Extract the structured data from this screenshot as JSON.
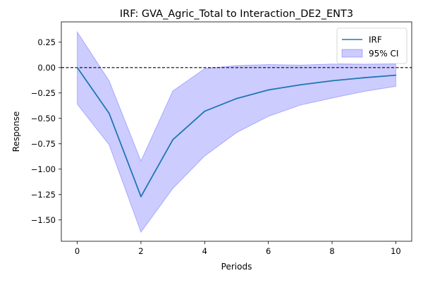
{
  "chart_data": {
    "type": "line",
    "title": "IRF: GVA_Agric_Total to Interaction_DE2_ENT3",
    "xlabel": "Periods",
    "ylabel": "Response",
    "xlim": [
      -0.5,
      10.5
    ],
    "ylim": [
      -1.71,
      0.45
    ],
    "x": [
      0,
      1,
      2,
      3,
      4,
      5,
      6,
      7,
      8,
      9,
      10
    ],
    "x_ticks": [
      0,
      2,
      4,
      6,
      8,
      10
    ],
    "y_ticks": [
      -1.5,
      -1.25,
      -1.0,
      -0.75,
      -0.5,
      -0.25,
      0.0,
      0.25
    ],
    "y_tick_labels": [
      "−1.50",
      "−1.25",
      "−1.00",
      "−0.75",
      "−0.50",
      "−0.25",
      "0.00",
      "0.25"
    ],
    "grid": false,
    "reference_line": {
      "y": 0.0,
      "style": "dashed",
      "color": "#000000"
    },
    "series": [
      {
        "name": "IRF",
        "type": "line",
        "color": "#1f77b4",
        "values": [
          0.0,
          -0.45,
          -1.27,
          -0.71,
          -0.43,
          -0.305,
          -0.22,
          -0.17,
          -0.13,
          -0.1,
          -0.075
        ]
      },
      {
        "name": "95% CI",
        "type": "band",
        "color": "#0000ff",
        "opacity": 0.2,
        "upper": [
          0.35,
          -0.13,
          -0.92,
          -0.23,
          -0.01,
          0.02,
          0.03,
          0.025,
          0.035,
          0.03,
          0.035
        ],
        "lower": [
          -0.36,
          -0.76,
          -1.62,
          -1.19,
          -0.87,
          -0.64,
          -0.48,
          -0.37,
          -0.3,
          -0.235,
          -0.185
        ]
      }
    ],
    "legend": {
      "position": "top-right"
    }
  }
}
